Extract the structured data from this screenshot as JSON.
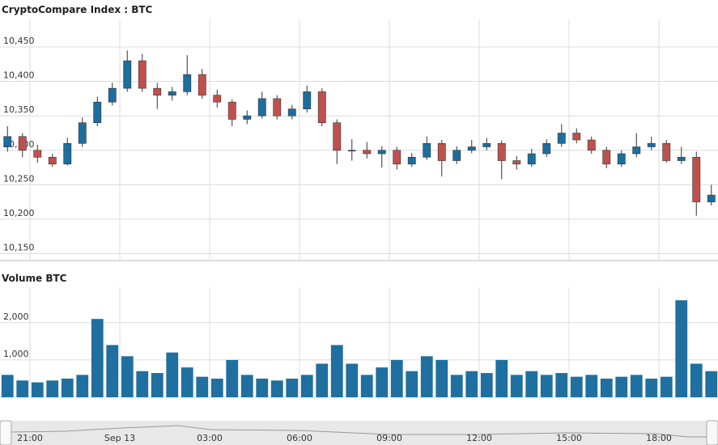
{
  "chart_data": {
    "type": "candlestick",
    "title": "CryptoCompare Index : BTC",
    "volume_title": "Volume BTC",
    "up_color": "#1b6e9e",
    "down_color": "#c0504d",
    "volume_color": "#1f6fa0",
    "open": [
      10305,
      10320,
      10300,
      10290,
      10280,
      10310,
      10340,
      10370,
      10390,
      10430,
      10390,
      10380,
      10385,
      10410,
      10380,
      10370,
      10345,
      10350,
      10375,
      10350,
      10360,
      10385,
      10340,
      10300,
      10300,
      10295,
      10300,
      10280,
      10290,
      10310,
      10285,
      10300,
      10305,
      10310,
      10285,
      10280,
      10295,
      10310,
      10325,
      10315,
      10300,
      10280,
      10295,
      10305,
      10310,
      10285,
      10290,
      10225
    ],
    "high": [
      10335,
      10325,
      10308,
      10295,
      10318,
      10348,
      10378,
      10398,
      10445,
      10440,
      10398,
      10392,
      10438,
      10418,
      10388,
      10374,
      10358,
      10385,
      10380,
      10366,
      10394,
      10390,
      10345,
      10316,
      10312,
      10306,
      10305,
      10296,
      10320,
      10315,
      10306,
      10315,
      10318,
      10314,
      10292,
      10302,
      10316,
      10338,
      10332,
      10320,
      10305,
      10300,
      10325,
      10320,
      10315,
      10305,
      10298,
      10250
    ],
    "low": [
      10298,
      10290,
      10282,
      10276,
      10278,
      10305,
      10335,
      10365,
      10385,
      10385,
      10360,
      10372,
      10380,
      10375,
      10362,
      10335,
      10338,
      10346,
      10345,
      10345,
      10355,
      10335,
      10280,
      10285,
      10288,
      10275,
      10272,
      10276,
      10286,
      10262,
      10280,
      10296,
      10300,
      10258,
      10272,
      10276,
      10290,
      10305,
      10310,
      10295,
      10274,
      10276,
      10290,
      10300,
      10282,
      10280,
      10205,
      10220
    ],
    "close": [
      10320,
      10300,
      10290,
      10280,
      10310,
      10340,
      10370,
      10390,
      10430,
      10390,
      10380,
      10385,
      10410,
      10380,
      10370,
      10345,
      10350,
      10375,
      10350,
      10360,
      10385,
      10340,
      10300,
      10300,
      10295,
      10300,
      10280,
      10290,
      10310,
      10285,
      10300,
      10305,
      10310,
      10285,
      10280,
      10295,
      10310,
      10325,
      10315,
      10300,
      10280,
      10295,
      10305,
      10310,
      10285,
      10290,
      10225,
      10235
    ],
    "volume": [
      600,
      450,
      400,
      450,
      500,
      600,
      2100,
      1400,
      1100,
      700,
      650,
      1200,
      800,
      550,
      500,
      1000,
      600,
      500,
      450,
      500,
      600,
      900,
      1400,
      900,
      600,
      800,
      1000,
      700,
      1100,
      1000,
      600,
      700,
      650,
      1000,
      600,
      700,
      600,
      650,
      550,
      600,
      500,
      550,
      600,
      500,
      550,
      2600,
      900,
      700
    ],
    "xlim": [
      0,
      48
    ],
    "xticks": [
      {
        "value": 2,
        "label": "21:00"
      },
      {
        "value": 8,
        "label": "Sep 13"
      },
      {
        "value": 14,
        "label": "03:00"
      },
      {
        "value": 20,
        "label": "06:00"
      },
      {
        "value": 26,
        "label": "09:00"
      },
      {
        "value": 32,
        "label": "12:00"
      },
      {
        "value": 38,
        "label": "15:00"
      },
      {
        "value": 44,
        "label": "18:00"
      }
    ],
    "ylim": [
      10140,
      10490
    ],
    "yticks": [
      {
        "value": 10150,
        "label": "10,150"
      },
      {
        "value": 10200,
        "label": "10,200"
      },
      {
        "value": 10250,
        "label": "10,250"
      },
      {
        "value": 10300,
        "label": "10,300"
      },
      {
        "value": 10350,
        "label": "10,350"
      },
      {
        "value": 10400,
        "label": "10,400"
      },
      {
        "value": 10450,
        "label": "10,450"
      }
    ],
    "volume_ylim": [
      0,
      2950
    ],
    "volume_yticks": [
      0,
      {
        "value": 1000,
        "label": "1,000"
      },
      {
        "value": 2000,
        "label": "2,000"
      }
    ],
    "grid": true
  }
}
